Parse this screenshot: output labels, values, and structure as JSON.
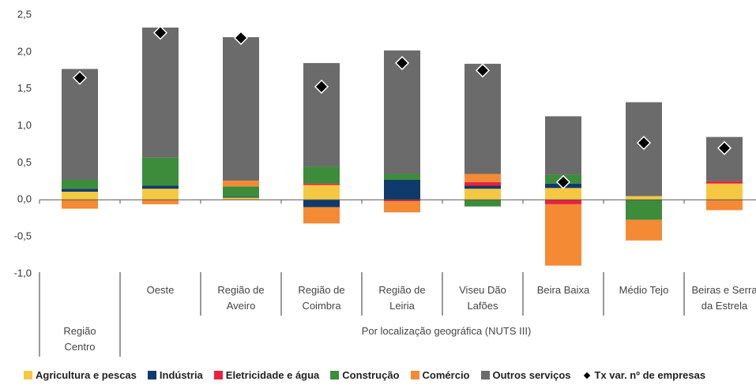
{
  "chart_data": {
    "type": "stacked_bar",
    "categories": [
      "Região Centro",
      "Oeste",
      "Região de Aveiro",
      "Região de Coimbra",
      "Região de Leiria",
      "Viseu Dão Lafões",
      "Beira Baixa",
      "Médio Tejo",
      "Beiras e Serra da Estrela"
    ],
    "group_label": "Por localização geográfica (NUTS III)",
    "series": [
      {
        "name": "Agricultura e pescas",
        "color": "#f5c842",
        "values": [
          0.11,
          0.15,
          0.03,
          0.2,
          0,
          0.15,
          0.16,
          0.05,
          0.22
        ]
      },
      {
        "name": "Indústria",
        "color": "#0f3a6b",
        "values": [
          0.04,
          0.04,
          0.01,
          -0.1,
          0.27,
          0.04,
          0.06,
          0,
          0
        ]
      },
      {
        "name": "Eletricidade e água",
        "color": "#e8213f",
        "values": [
          0,
          0,
          0,
          0.02,
          -0.02,
          0.05,
          -0.06,
          0,
          0.03
        ]
      },
      {
        "name": "Construção",
        "color": "#3c8c3c",
        "values": [
          0.12,
          0.38,
          0.14,
          0.23,
          0.08,
          -0.09,
          0.12,
          -0.27,
          0
        ]
      },
      {
        "name": "Comércio",
        "color": "#f58a35",
        "values": [
          -0.12,
          -0.06,
          0.08,
          -0.22,
          -0.15,
          0.11,
          -0.83,
          -0.28,
          -0.14
        ]
      },
      {
        "name": "Outros serviços",
        "color": "#6b6b6b",
        "values": [
          1.5,
          1.76,
          1.94,
          1.4,
          1.67,
          1.49,
          0.79,
          1.27,
          0.6
        ]
      }
    ],
    "markers": {
      "name": "Tx var. nº de empresas",
      "color": "#000000",
      "values": [
        1.65,
        2.26,
        2.19,
        1.53,
        1.85,
        1.75,
        0.24,
        0.77,
        0.7
      ]
    },
    "ylim": [
      -1.0,
      2.5
    ],
    "yticks": [
      {
        "value": 2.5,
        "label": "2,5"
      },
      {
        "value": 2.0,
        "label": "2,0"
      },
      {
        "value": 1.5,
        "label": "1,5"
      },
      {
        "value": 1.0,
        "label": "1,0"
      },
      {
        "value": 0.5,
        "label": "0,5"
      },
      {
        "value": 0,
        "label": "0,0"
      },
      {
        "value": -0.5,
        "label": "-0,5"
      },
      {
        "value": -1.0,
        "label": "-1,0"
      }
    ]
  }
}
